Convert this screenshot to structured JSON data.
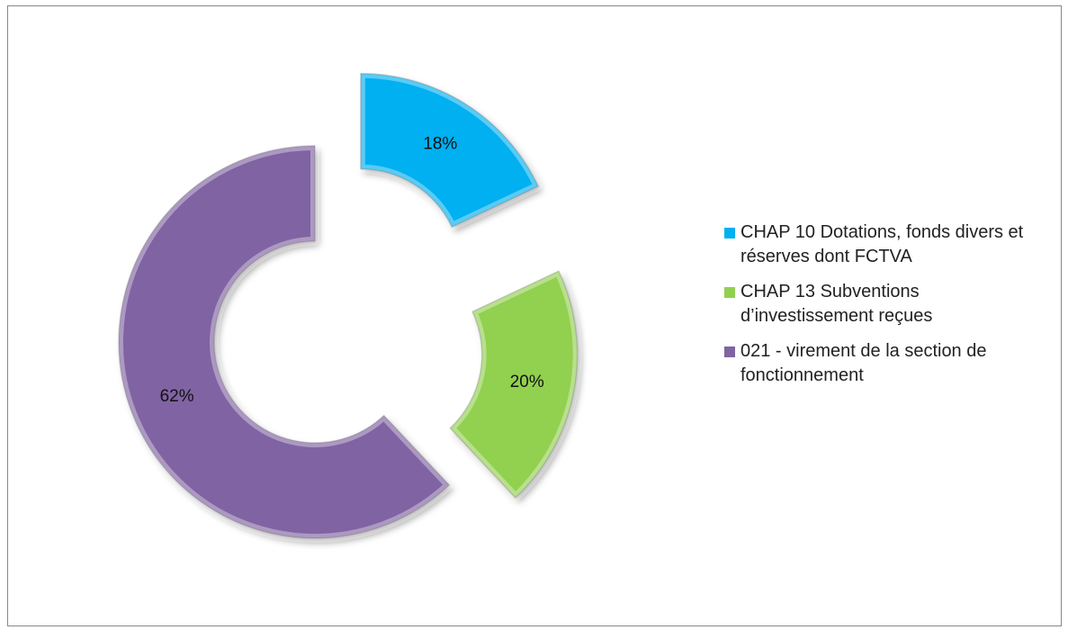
{
  "chart_data": {
    "type": "donut",
    "categories": [
      "CHAP 10 Dotations, fonds divers et réserves dont FCTVA",
      "CHAP 13 Subventions d’investissement reçues",
      "021 - virement de la section de fonctionnement"
    ],
    "values": [
      18,
      20,
      62
    ],
    "value_labels": [
      "18%",
      "20%",
      "62%"
    ],
    "colors": [
      "#00b0f0",
      "#92d050",
      "#8064a2"
    ],
    "legend": "right"
  }
}
